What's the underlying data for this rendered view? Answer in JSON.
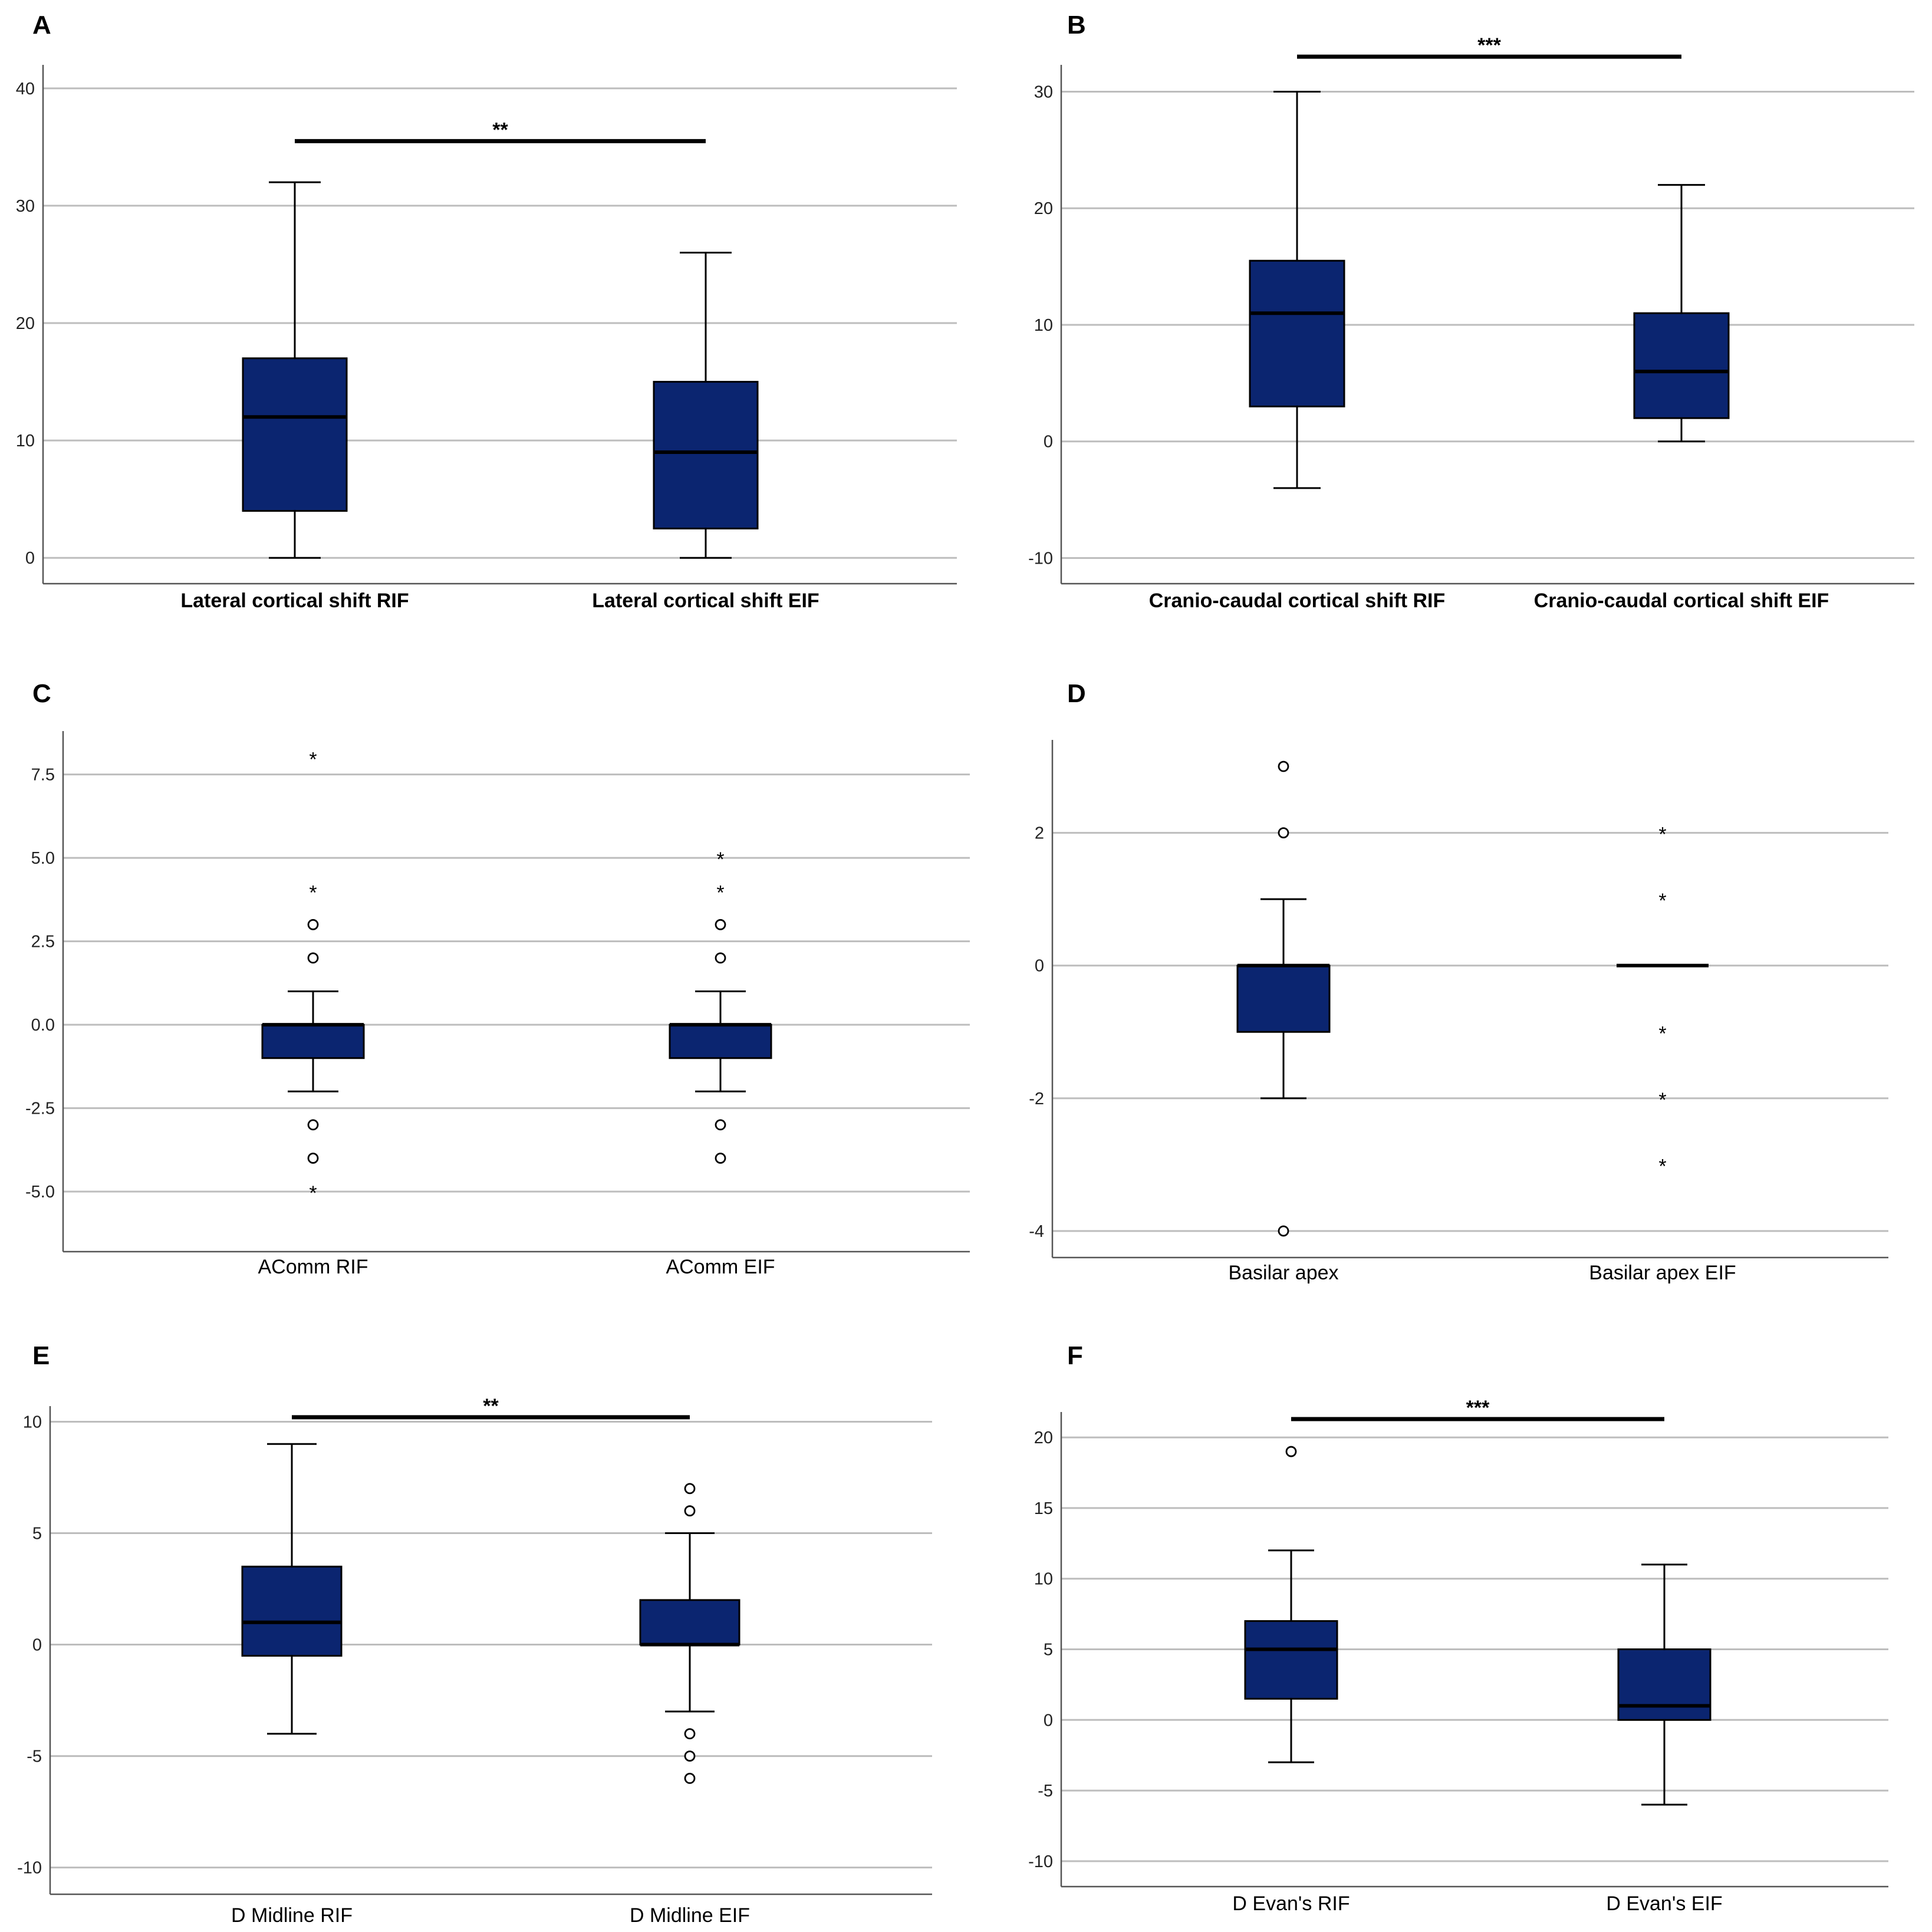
{
  "chart_data": [
    {
      "id": "A",
      "panel_label": "A",
      "type": "boxplot",
      "ylim": [
        -2.2,
        42
      ],
      "yticks": [
        0,
        10,
        20,
        30,
        40
      ],
      "tick_format": 0,
      "bold_categories": true,
      "categories": [
        "Lateral cortical shift RIF",
        "Lateral cortical shift EIF"
      ],
      "boxes": [
        {
          "whisker_low": 0,
          "q1": 4,
          "median": 12,
          "q3": 17,
          "whisker_high": 32,
          "outliers": []
        },
        {
          "whisker_low": 0,
          "q1": 2.5,
          "median": 9,
          "q3": 15,
          "whisker_high": 26,
          "outliers": []
        }
      ],
      "significance": {
        "value": 35.5,
        "label": "**"
      }
    },
    {
      "id": "B",
      "panel_label": "B",
      "type": "boxplot",
      "ylim": [
        -12.2,
        32.3
      ],
      "yticks": [
        -10,
        0,
        10,
        20,
        30
      ],
      "tick_format": 0,
      "bold_categories": true,
      "categories": [
        "Cranio-caudal cortical shift RIF",
        "Cranio-caudal cortical shift EIF"
      ],
      "boxes": [
        {
          "whisker_low": -4,
          "q1": 3,
          "median": 11,
          "q3": 15.5,
          "whisker_high": 30,
          "outliers": []
        },
        {
          "whisker_low": 0,
          "q1": 2,
          "median": 6,
          "q3": 11,
          "whisker_high": 22,
          "outliers": []
        }
      ],
      "significance": {
        "value": 33,
        "label": "***"
      }
    },
    {
      "id": "C",
      "panel_label": "C",
      "type": "boxplot",
      "ylim": [
        -6.8,
        8.8
      ],
      "yticks": [
        -5.0,
        -2.5,
        0.0,
        2.5,
        5.0,
        7.5
      ],
      "tick_format": 1,
      "bold_categories": false,
      "categories": [
        "AComm RIF",
        "AComm EIF"
      ],
      "boxes": [
        {
          "whisker_low": -2,
          "q1": -1,
          "median": 0,
          "q3": 0,
          "whisker_high": 1,
          "outliers": [
            {
              "v": 8,
              "m": "star"
            },
            {
              "v": 4,
              "m": "star"
            },
            {
              "v": 3,
              "m": "circle"
            },
            {
              "v": 2,
              "m": "circle"
            },
            {
              "v": -3,
              "m": "circle"
            },
            {
              "v": -4,
              "m": "circle"
            },
            {
              "v": -5,
              "m": "star"
            }
          ]
        },
        {
          "whisker_low": -2,
          "q1": -1,
          "median": 0,
          "q3": 0,
          "whisker_high": 1,
          "outliers": [
            {
              "v": 5,
              "m": "star"
            },
            {
              "v": 4,
              "m": "star"
            },
            {
              "v": 3,
              "m": "circle"
            },
            {
              "v": 2,
              "m": "circle"
            },
            {
              "v": -3,
              "m": "circle"
            },
            {
              "v": -4,
              "m": "circle"
            }
          ]
        }
      ],
      "significance": null
    },
    {
      "id": "D",
      "panel_label": "D",
      "type": "boxplot",
      "ylim": [
        -4.4,
        3.4
      ],
      "yticks": [
        -4,
        -2,
        0,
        2
      ],
      "tick_format": 0,
      "bold_categories": false,
      "categories": [
        "Basilar apex",
        "Basilar apex EIF"
      ],
      "boxes": [
        {
          "whisker_low": -2,
          "q1": -1,
          "median": 0,
          "q3": 0,
          "whisker_high": 1,
          "outliers": [
            {
              "v": 3,
              "m": "circle"
            },
            {
              "v": 2,
              "m": "circle"
            },
            {
              "v": -4,
              "m": "circle"
            }
          ]
        },
        {
          "whisker_low": 0,
          "q1": 0,
          "median": 0,
          "q3": 0,
          "whisker_high": 0,
          "outliers": [
            {
              "v": 2,
              "m": "star"
            },
            {
              "v": 1,
              "m": "star"
            },
            {
              "v": -1,
              "m": "star"
            },
            {
              "v": -2,
              "m": "star"
            },
            {
              "v": -3,
              "m": "star"
            }
          ]
        }
      ],
      "significance": null
    },
    {
      "id": "E",
      "panel_label": "E",
      "type": "boxplot",
      "ylim": [
        -11.2,
        10.7
      ],
      "yticks": [
        -10,
        -5,
        0,
        5,
        10
      ],
      "tick_format": 0,
      "bold_categories": false,
      "categories": [
        "D Midline RIF",
        "D Midline EIF"
      ],
      "boxes": [
        {
          "whisker_low": -4,
          "q1": -0.5,
          "median": 1,
          "q3": 3.5,
          "whisker_high": 9,
          "outliers": []
        },
        {
          "whisker_low": -3,
          "q1": 0,
          "median": 0,
          "q3": 2,
          "whisker_high": 5,
          "outliers": [
            {
              "v": 7,
              "m": "circle"
            },
            {
              "v": 6,
              "m": "circle"
            },
            {
              "v": -4,
              "m": "circle"
            },
            {
              "v": -5,
              "m": "circle"
            },
            {
              "v": -6,
              "m": "circle"
            }
          ]
        }
      ],
      "significance": {
        "value": 10.2,
        "label": "**"
      }
    },
    {
      "id": "F",
      "panel_label": "F",
      "type": "boxplot",
      "ylim": [
        -11.8,
        21.8
      ],
      "yticks": [
        -10,
        -5,
        0,
        5,
        10,
        15,
        20
      ],
      "tick_format": 0,
      "bold_categories": false,
      "categories": [
        "D Evan's RIF",
        "D Evan's EIF"
      ],
      "boxes": [
        {
          "whisker_low": -3,
          "q1": 1.5,
          "median": 5,
          "q3": 7,
          "whisker_high": 12,
          "outliers": [
            {
              "v": 19,
              "m": "circle"
            }
          ]
        },
        {
          "whisker_low": -6,
          "q1": 0,
          "median": 1,
          "q3": 5,
          "whisker_high": 11,
          "outliers": []
        }
      ],
      "significance": {
        "value": 21.3,
        "label": "***"
      }
    }
  ]
}
